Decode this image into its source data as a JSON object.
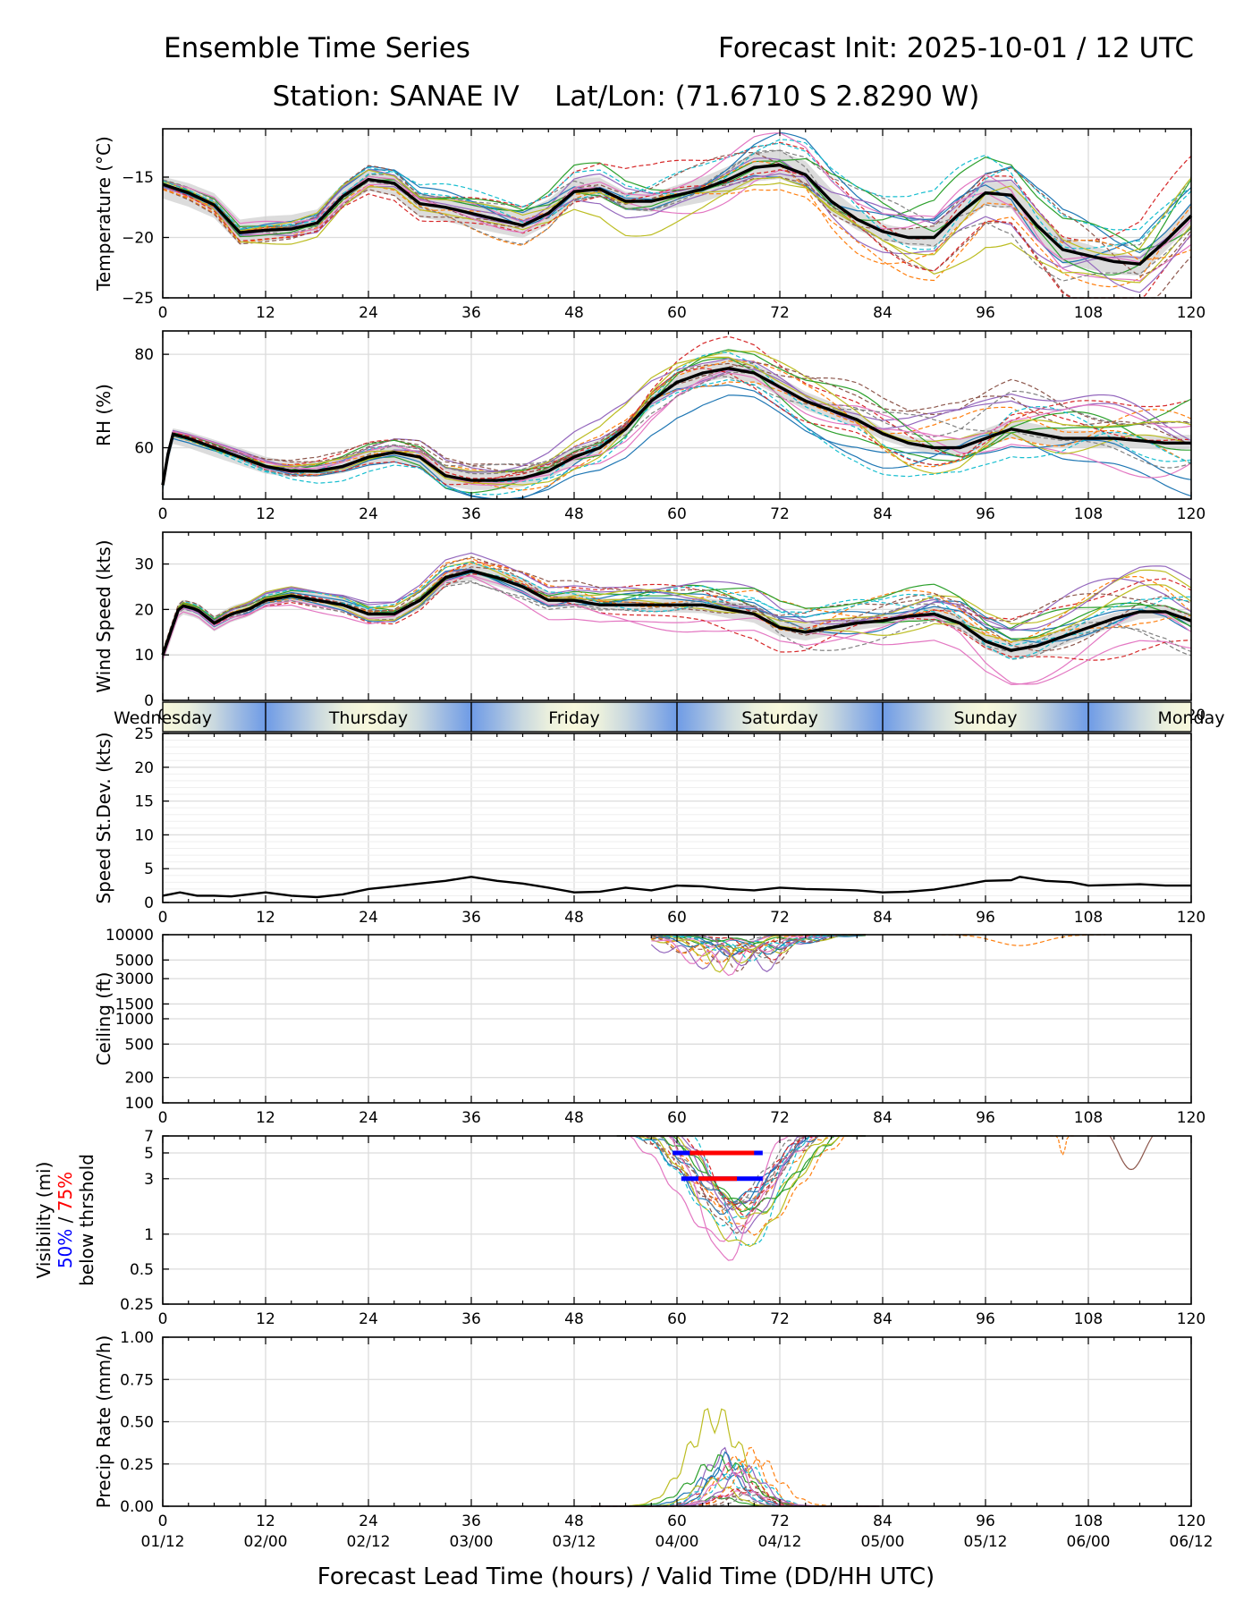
{
  "header": {
    "title_left": "Ensemble Time Series",
    "title_right": "Forecast Init: 2025-10-01 / 12 UTC",
    "station_line": "Station: SANAE IV    Lat/Lon: (71.6710 S 2.8290 W)"
  },
  "x_axis": {
    "label": "Forecast Lead Time (hours) / Valid Time (DD/HH UTC)",
    "hours": [
      "0",
      "12",
      "24",
      "36",
      "48",
      "60",
      "72",
      "84",
      "96",
      "108",
      "120"
    ],
    "valid_times": [
      "01/12",
      "02/00",
      "02/12",
      "03/00",
      "03/12",
      "04/00",
      "04/12",
      "05/00",
      "05/12",
      "06/00",
      "06/12"
    ]
  },
  "day_band": {
    "days": [
      "Wednesday",
      "Thursday",
      "Friday",
      "Saturday",
      "Sunday",
      "Monday"
    ],
    "colors": {
      "noon": "#f8f8dc",
      "midnight": "#6e9be6"
    }
  },
  "colors": {
    "mean": "#000000",
    "spread": "#d0d0d0",
    "members": [
      "#1f77b4",
      "#ff7f0e",
      "#2ca02c",
      "#d62728",
      "#9467bd",
      "#8c564b",
      "#e377c2",
      "#7f7f7f",
      "#bcbd22",
      "#17becf"
    ],
    "threshold_50": "#0000ff",
    "threshold_75": "#ff0000"
  },
  "chart_data": [
    {
      "type": "line",
      "name": "temperature",
      "ylabel": "Temperature (°C)",
      "ylim": [
        -25,
        -11
      ],
      "yticks": [
        -25,
        -20,
        -15
      ],
      "ytick_labels": [
        "−25",
        "−20",
        "−15"
      ],
      "grid": true,
      "x": [
        0,
        3,
        6,
        9,
        12,
        15,
        18,
        21,
        24,
        27,
        30,
        33,
        36,
        39,
        42,
        45,
        48,
        51,
        54,
        57,
        60,
        63,
        66,
        69,
        72,
        75,
        78,
        81,
        84,
        87,
        90,
        93,
        96,
        99,
        102,
        105,
        108,
        111,
        114,
        117,
        120
      ],
      "mean": [
        -15.6,
        -16.3,
        -17.3,
        -19.6,
        -19.4,
        -19.3,
        -18.8,
        -16.6,
        -15.2,
        -15.5,
        -17.2,
        -17.5,
        -18.0,
        -18.5,
        -19.0,
        -18.0,
        -16.2,
        -16.0,
        -17.0,
        -17.0,
        -16.5,
        -16.0,
        -15.2,
        -14.2,
        -14.0,
        -14.8,
        -17.0,
        -18.5,
        -19.5,
        -20.0,
        -20.0,
        -18.0,
        -16.3,
        -16.5,
        -19.0,
        -21.0,
        -21.5,
        -22.0,
        -22.2,
        -20.3,
        -18.2
      ],
      "spread": 0.9,
      "members_count": 20
    },
    {
      "type": "line",
      "name": "relative_humidity",
      "ylabel": "RH (%)",
      "ylim": [
        49,
        85
      ],
      "yticks": [
        60,
        80
      ],
      "ytick_labels": [
        "60",
        "80"
      ],
      "grid": true,
      "x": [
        0,
        1,
        3,
        6,
        9,
        12,
        15,
        18,
        21,
        24,
        27,
        30,
        33,
        36,
        39,
        42,
        45,
        48,
        51,
        54,
        57,
        60,
        63,
        66,
        69,
        72,
        75,
        78,
        81,
        84,
        87,
        90,
        93,
        96,
        99,
        102,
        105,
        108,
        111,
        114,
        117,
        120
      ],
      "mean": [
        52,
        63,
        62,
        60,
        58,
        56,
        55,
        55,
        56,
        58,
        59,
        58,
        54,
        53,
        53,
        53.5,
        55,
        58,
        60,
        64,
        70,
        74,
        76,
        77,
        76,
        73,
        70,
        68,
        66,
        63,
        61,
        60,
        60,
        62,
        64,
        63,
        62,
        62,
        62,
        61.5,
        61,
        61
      ],
      "spread": 1.6,
      "members_count": 20
    },
    {
      "type": "line",
      "name": "wind_speed",
      "ylabel": "Wind Speed (kts)",
      "ylim": [
        0,
        37
      ],
      "yticks": [
        0,
        10,
        20,
        30
      ],
      "ytick_labels": [
        "0",
        "10",
        "20",
        "30"
      ],
      "grid": true,
      "x": [
        0,
        2,
        4,
        6,
        8,
        10,
        12,
        15,
        18,
        21,
        24,
        27,
        30,
        33,
        36,
        39,
        42,
        45,
        48,
        51,
        54,
        57,
        60,
        63,
        66,
        69,
        72,
        75,
        78,
        81,
        84,
        87,
        90,
        93,
        96,
        99,
        102,
        105,
        108,
        111,
        114,
        117,
        120
      ],
      "mean": [
        10,
        21,
        20,
        17,
        19,
        20,
        22,
        23,
        22,
        21,
        19,
        19,
        22,
        27,
        28.5,
        27,
        25,
        22,
        22,
        21,
        21,
        21,
        21,
        21,
        20,
        19,
        16,
        15,
        16,
        17,
        17.5,
        18.5,
        19,
        17,
        13,
        11,
        12,
        14,
        16,
        18,
        19.5,
        19.5,
        17.5
      ],
      "spread": 1.5,
      "members_count": 20
    },
    {
      "type": "line",
      "name": "speed_std_dev",
      "ylabel": "Speed St.Dev. (kts)",
      "ylim": [
        0,
        25
      ],
      "yticks": [
        0,
        5,
        10,
        15,
        20,
        25
      ],
      "ytick_labels": [
        "0",
        "5",
        "10",
        "15",
        "20",
        "25"
      ],
      "grid": true,
      "x": [
        0,
        2,
        4,
        6,
        8,
        10,
        12,
        15,
        18,
        21,
        24,
        27,
        30,
        33,
        36,
        39,
        42,
        45,
        48,
        51,
        54,
        57,
        60,
        63,
        66,
        69,
        72,
        75,
        78,
        81,
        84,
        87,
        90,
        93,
        96,
        99,
        100,
        103,
        106,
        108,
        111,
        114,
        117,
        120
      ],
      "values": [
        1.0,
        1.5,
        1.0,
        1.0,
        0.9,
        1.2,
        1.5,
        1.0,
        0.8,
        1.2,
        2.0,
        2.4,
        2.8,
        3.2,
        3.8,
        3.2,
        2.8,
        2.2,
        1.5,
        1.6,
        2.2,
        1.8,
        2.5,
        2.4,
        2.0,
        1.8,
        2.2,
        2.0,
        1.9,
        1.8,
        1.5,
        1.6,
        1.9,
        2.5,
        3.2,
        3.3,
        3.8,
        3.2,
        3.0,
        2.5,
        2.6,
        2.7,
        2.5,
        2.5
      ]
    },
    {
      "type": "line",
      "name": "ceiling",
      "ylabel": "Ceiling (ft)",
      "scale": "log",
      "ylim": [
        100,
        10000
      ],
      "yticks": [
        100,
        200,
        500,
        1000,
        1500,
        3000,
        5000,
        10000
      ],
      "ytick_labels": [
        "100",
        "200",
        "500",
        "1000",
        "1500",
        "3000",
        "5000",
        "10000"
      ],
      "grid": true,
      "members_count": 20
    },
    {
      "type": "line",
      "name": "visibility",
      "ylabel": "Visibility (mi)",
      "ylabel_line2": "50% / 75%",
      "ylabel_line3": "below thrshold",
      "scale": "log",
      "ylim": [
        0.25,
        7
      ],
      "yticks": [
        0.25,
        0.5,
        1,
        3,
        5,
        7
      ],
      "ytick_labels": [
        "0.25",
        "0.5",
        "1",
        "3",
        "5",
        "7"
      ],
      "grid": true,
      "thresholds": [
        {
          "value": 5,
          "start_50": 59.5,
          "end_50": 70,
          "start_75": 61.5,
          "end_75": 69
        },
        {
          "value": 3,
          "start_50": 60.5,
          "end_50": 70,
          "start_75": 62.5,
          "end_75": 67
        }
      ],
      "members_count": 20
    },
    {
      "type": "line",
      "name": "precip_rate",
      "ylabel": "Precip Rate (mm/h)",
      "ylim": [
        0,
        1
      ],
      "yticks": [
        0,
        0.25,
        0.5,
        0.75,
        1.0
      ],
      "ytick_labels": [
        "0.00",
        "0.25",
        "0.50",
        "0.75",
        "1.00"
      ],
      "grid": true,
      "peak_max": 0.62,
      "peak_hour": 66,
      "members_count": 20
    }
  ]
}
